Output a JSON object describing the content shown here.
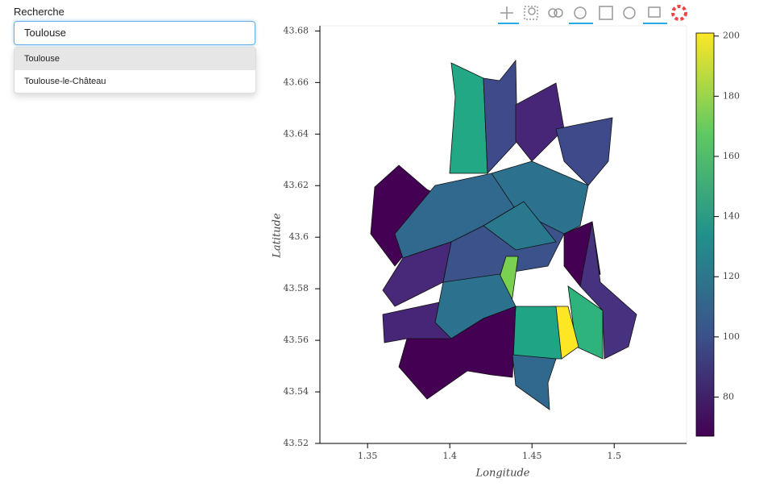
{
  "search": {
    "label": "Recherche",
    "input": "Toulouse",
    "suggestions": [
      "Toulouse",
      "Toulouse-le-Château"
    ]
  },
  "chart_data": {
    "type": "choropleth",
    "x_label": "Longitude",
    "y_label": "Latitude",
    "xlim": [
      1.321,
      1.544
    ],
    "xticks": [
      1.35,
      1.4,
      1.45,
      1.5
    ],
    "ylim": [
      43.52,
      43.682
    ],
    "yticks": [
      43.52,
      43.54,
      43.56,
      43.58,
      43.6,
      43.62,
      43.64,
      43.66,
      43.68
    ],
    "colorbar": {
      "lim": [
        67,
        201
      ],
      "ticks": [
        80,
        100,
        120,
        140,
        160,
        180,
        200
      ]
    }
  }
}
